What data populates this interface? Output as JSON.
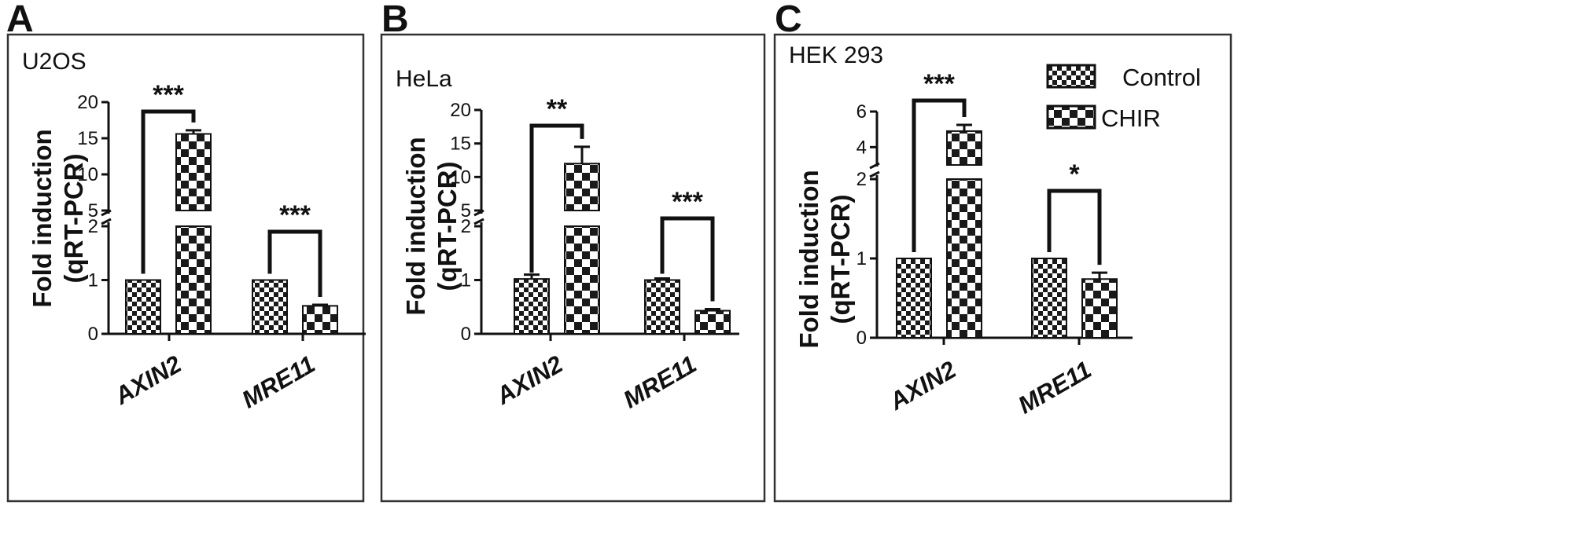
{
  "colors": {
    "ink": "#111111",
    "background": "#ffffff",
    "pattern_light": "#ffffff",
    "pattern_dark": "#1a1a1a"
  },
  "legend": {
    "placement": "top-right of panel C",
    "entries": [
      "Control",
      "CHIR"
    ]
  },
  "chart_data": [
    {
      "type": "bar",
      "panel_label": "A",
      "cell_line": "U2OS",
      "ylabel": "Fold induction\n(qRT-PCR)",
      "categories": [
        "AXIN2",
        "MRE11"
      ],
      "series": [
        {
          "name": "Control",
          "values": [
            1.0,
            1.0
          ],
          "errors": [
            0,
            0
          ]
        },
        {
          "name": "CHIR",
          "values": [
            15.6,
            0.52
          ],
          "errors": [
            0.5,
            0.02
          ]
        }
      ],
      "y_axis": {
        "broken": true,
        "lower_range": [
          0,
          2
        ],
        "lower_ticks": [
          "0",
          "1",
          "2"
        ],
        "upper_range": [
          5,
          20
        ],
        "upper_ticks": [
          "5",
          "10",
          "15",
          "20"
        ]
      },
      "significance": [
        "***",
        "***"
      ]
    },
    {
      "type": "bar",
      "panel_label": "B",
      "cell_line": "HeLa",
      "ylabel": "Fold induction\n(qRT-PCR)",
      "categories": [
        "AXIN2",
        "MRE11"
      ],
      "series": [
        {
          "name": "Control",
          "values": [
            1.02,
            1.0
          ],
          "errors": [
            0.08,
            0.03
          ]
        },
        {
          "name": "CHIR",
          "values": [
            12.0,
            0.43
          ],
          "errors": [
            2.5,
            0.03
          ]
        }
      ],
      "y_axis": {
        "broken": true,
        "lower_range": [
          0,
          2
        ],
        "lower_ticks": [
          "0",
          "1",
          "2"
        ],
        "upper_range": [
          5,
          20
        ],
        "upper_ticks": [
          "5",
          "10",
          "15",
          "20"
        ]
      },
      "significance": [
        "**",
        "***"
      ]
    },
    {
      "type": "bar",
      "panel_label": "C",
      "cell_line": "HEK 293",
      "ylabel": "Fold induction\n(qRT-PCR)",
      "categories": [
        "AXIN2",
        "MRE11"
      ],
      "series": [
        {
          "name": "Control",
          "values": [
            1.0,
            1.0
          ],
          "errors": [
            0,
            0
          ]
        },
        {
          "name": "CHIR",
          "values": [
            4.9,
            0.74
          ],
          "errors": [
            0.35,
            0.08
          ]
        }
      ],
      "y_axis": {
        "broken": true,
        "lower_range": [
          0,
          2
        ],
        "lower_ticks": [
          "0",
          "1",
          "2"
        ],
        "upper_range": [
          3,
          6
        ],
        "upper_ticks": [
          "4",
          "6"
        ]
      },
      "significance": [
        "***",
        "*"
      ]
    }
  ]
}
